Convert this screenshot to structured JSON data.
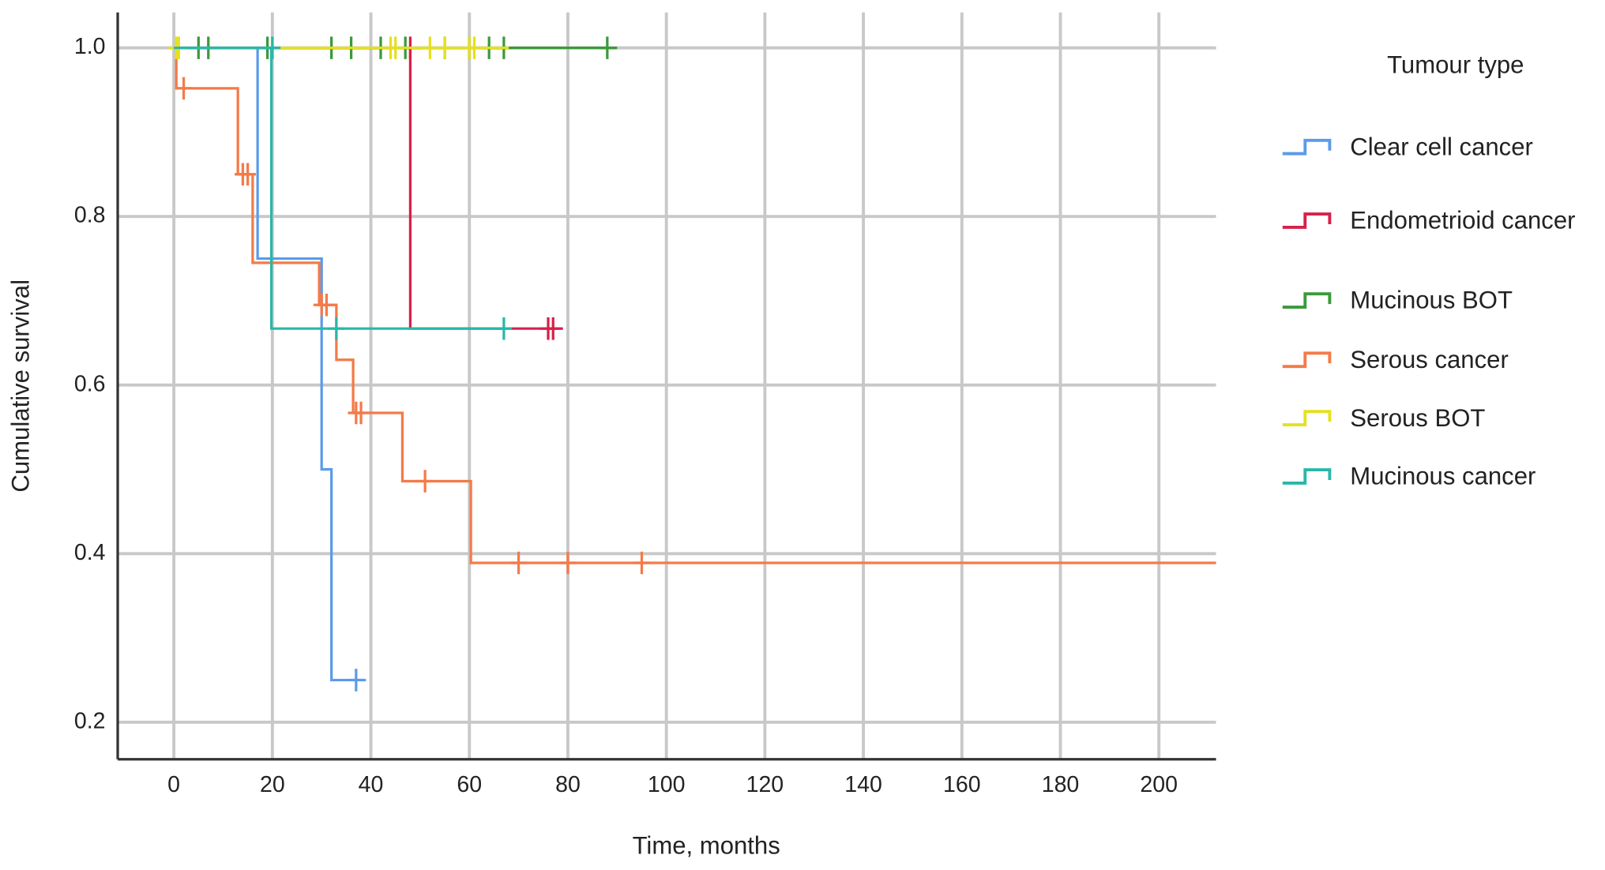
{
  "chart_data": {
    "type": "step",
    "x_label": "Time, months",
    "y_label": "Cumulative survival",
    "legend_title": "Tumour type",
    "legend_position": "right",
    "grid": true,
    "xlim": [
      -11.4,
      211.6
    ],
    "ylim": [
      0.156,
      1.042
    ],
    "xticks": [
      0,
      20,
      40,
      60,
      80,
      100,
      120,
      140,
      160,
      180,
      200
    ],
    "yticks": [
      0.2,
      0.4,
      0.6,
      0.8,
      {
        "value": 1,
        "label": "1.0"
      }
    ],
    "series": [
      {
        "name": "Clear cell cancer",
        "color": "#5b9be8",
        "x": [
          0,
          17,
          30,
          32,
          39
        ],
        "values": [
          1,
          0.75,
          0.5,
          0.25,
          0.25
        ],
        "censor_x": [
          37
        ],
        "censor_y": [
          0.25
        ]
      },
      {
        "name": "Endometrioid cancer",
        "color": "#d6204a",
        "x": [
          0,
          48,
          79
        ],
        "values": [
          1,
          0.667,
          0.667
        ],
        "censor_x": [
          48,
          76,
          77
        ],
        "censor_y": [
          1,
          0.667,
          0.667
        ]
      },
      {
        "name": "Mucinous BOT",
        "color": "#3a9a3a",
        "x": [
          0,
          90
        ],
        "values": [
          1,
          1
        ],
        "censor_x": [
          5,
          7,
          19,
          32,
          36,
          42,
          47,
          55,
          60,
          64,
          67,
          88
        ],
        "censor_y": [
          1,
          1,
          1,
          1,
          1,
          1,
          1,
          1,
          1,
          1,
          1,
          1
        ]
      },
      {
        "name": "Serous cancer",
        "color": "#f47a48",
        "x": [
          0,
          0.5,
          13,
          16,
          29.5,
          33,
          36.4,
          46.4,
          60.3,
          211.6
        ],
        "values": [
          1,
          0.952,
          0.85,
          0.745,
          0.695,
          0.63,
          0.567,
          0.486,
          0.389,
          0.389
        ],
        "censor_x": [
          2,
          14,
          15,
          30,
          31,
          37,
          38,
          51,
          70,
          80,
          95
        ],
        "censor_y": [
          0.952,
          0.85,
          0.85,
          0.695,
          0.695,
          0.567,
          0.567,
          0.486,
          0.389,
          0.389,
          0.389
        ]
      },
      {
        "name": "Serous BOT",
        "color": "#e6e020",
        "x": [
          0,
          68
        ],
        "values": [
          1,
          1
        ],
        "censor_x": [
          0.5,
          1,
          44,
          45,
          52,
          55,
          60,
          61
        ],
        "censor_y": [
          1,
          1,
          1,
          1,
          1,
          1,
          1,
          1
        ]
      },
      {
        "name": "Mucinous cancer",
        "color": "#2ab7a9",
        "x": [
          0,
          19.8,
          67
        ],
        "values": [
          1,
          0.667,
          0.667
        ],
        "censor_x": [
          20,
          33,
          67
        ],
        "censor_y": [
          1,
          0.667,
          0.667
        ]
      }
    ]
  }
}
